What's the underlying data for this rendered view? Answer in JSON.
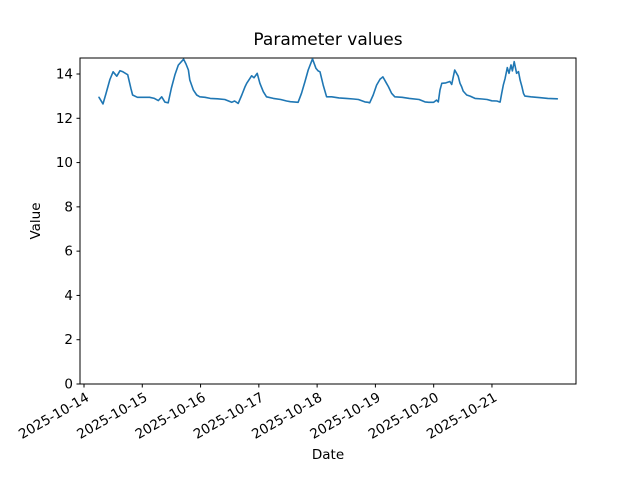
{
  "title": "Parameter values",
  "x_axis_label": "Date",
  "y_axis_label": "Value",
  "chart_data": {
    "type": "line",
    "title": "Parameter values",
    "xlabel": "Date",
    "ylabel": "Value",
    "grid": false,
    "legend": null,
    "line_color": "#1f77b4",
    "ylim": [
      0,
      14.72
    ],
    "xlim": [
      "2025-10-13 22:20",
      "2025-10-22 10:30"
    ],
    "y_ticks": [
      0,
      2,
      4,
      6,
      8,
      10,
      12,
      14
    ],
    "x_ticks": [
      "2025-10-14",
      "2025-10-15",
      "2025-10-16",
      "2025-10-17",
      "2025-10-18",
      "2025-10-19",
      "2025-10-20",
      "2025-10-21"
    ],
    "series": [
      {
        "color": "#1f77b4",
        "points": [
          [
            "2025-10-14 06:10",
            12.95
          ],
          [
            "2025-10-14 07:50",
            12.65
          ],
          [
            "2025-10-14 09:00",
            13.1
          ],
          [
            "2025-10-14 10:40",
            13.75
          ],
          [
            "2025-10-14 12:00",
            14.1
          ],
          [
            "2025-10-14 13:30",
            13.9
          ],
          [
            "2025-10-14 14:50",
            14.15
          ],
          [
            "2025-10-14 16:00",
            14.1
          ],
          [
            "2025-10-14 18:00",
            13.97
          ],
          [
            "2025-10-14 19:20",
            13.35
          ],
          [
            "2025-10-14 20:00",
            13.05
          ],
          [
            "2025-10-14 22:00",
            12.95
          ],
          [
            "2025-10-15 00:00",
            12.95
          ],
          [
            "2025-10-15 03:00",
            12.95
          ],
          [
            "2025-10-15 05:00",
            12.9
          ],
          [
            "2025-10-15 06:35",
            12.8
          ],
          [
            "2025-10-15 08:00",
            12.97
          ],
          [
            "2025-10-15 09:20",
            12.73
          ],
          [
            "2025-10-15 10:40",
            12.7
          ],
          [
            "2025-10-15 12:00",
            13.37
          ],
          [
            "2025-10-15 13:25",
            13.96
          ],
          [
            "2025-10-15 14:50",
            14.4
          ],
          [
            "2025-10-15 17:00",
            14.67
          ],
          [
            "2025-10-15 18:00",
            14.45
          ],
          [
            "2025-10-15 19:00",
            14.18
          ],
          [
            "2025-10-15 19:35",
            13.73
          ],
          [
            "2025-10-15 21:00",
            13.28
          ],
          [
            "2025-10-15 22:25",
            13.05
          ],
          [
            "2025-10-15 23:40",
            12.97
          ],
          [
            "2025-10-16 01:50",
            12.95
          ],
          [
            "2025-10-16 04:00",
            12.9
          ],
          [
            "2025-10-16 07:00",
            12.88
          ],
          [
            "2025-10-16 10:00",
            12.85
          ],
          [
            "2025-10-16 12:50",
            12.72
          ],
          [
            "2025-10-16 14:00",
            12.78
          ],
          [
            "2025-10-16 15:30",
            12.67
          ],
          [
            "2025-10-16 17:00",
            13.05
          ],
          [
            "2025-10-16 18:20",
            13.43
          ],
          [
            "2025-10-16 19:00",
            13.58
          ],
          [
            "2025-10-16 20:20",
            13.8
          ],
          [
            "2025-10-16 21:00",
            13.92
          ],
          [
            "2025-10-16 22:00",
            13.83
          ],
          [
            "2025-10-16 23:20",
            14.03
          ],
          [
            "2025-10-17 00:25",
            13.58
          ],
          [
            "2025-10-17 01:50",
            13.2
          ],
          [
            "2025-10-17 03:10",
            12.97
          ],
          [
            "2025-10-17 06:00",
            12.9
          ],
          [
            "2025-10-17 09:00",
            12.85
          ],
          [
            "2025-10-17 11:25",
            12.78
          ],
          [
            "2025-10-17 13:00",
            12.75
          ],
          [
            "2025-10-17 16:10",
            12.72
          ],
          [
            "2025-10-17 17:35",
            13.13
          ],
          [
            "2025-10-17 19:00",
            13.66
          ],
          [
            "2025-10-17 20:20",
            14.18
          ],
          [
            "2025-10-17 22:05",
            14.68
          ],
          [
            "2025-10-17 23:30",
            14.26
          ],
          [
            "2025-10-18 00:25",
            14.14
          ],
          [
            "2025-10-18 01:10",
            14.1
          ],
          [
            "2025-10-18 02:30",
            13.5
          ],
          [
            "2025-10-18 03:55",
            12.97
          ],
          [
            "2025-10-18 06:00",
            12.97
          ],
          [
            "2025-10-18 09:00",
            12.92
          ],
          [
            "2025-10-18 12:00",
            12.9
          ],
          [
            "2025-10-18 15:00",
            12.87
          ],
          [
            "2025-10-18 17:00",
            12.85
          ],
          [
            "2025-10-18 19:40",
            12.74
          ],
          [
            "2025-10-18 21:00",
            12.72
          ],
          [
            "2025-10-18 21:40",
            12.7
          ],
          [
            "2025-10-18 23:05",
            13.05
          ],
          [
            "2025-10-19 00:30",
            13.5
          ],
          [
            "2025-10-19 01:55",
            13.77
          ],
          [
            "2025-10-19 03:05",
            13.87
          ],
          [
            "2025-10-19 04:35",
            13.58
          ],
          [
            "2025-10-19 05:20",
            13.43
          ],
          [
            "2025-10-19 06:40",
            13.13
          ],
          [
            "2025-10-19 08:00",
            12.97
          ],
          [
            "2025-10-19 11:00",
            12.95
          ],
          [
            "2025-10-19 14:00",
            12.9
          ],
          [
            "2025-10-19 18:00",
            12.85
          ],
          [
            "2025-10-19 20:25",
            12.74
          ],
          [
            "2025-10-19 22:00",
            12.72
          ],
          [
            "2025-10-20 00:00",
            12.72
          ],
          [
            "2025-10-20 01:10",
            12.82
          ],
          [
            "2025-10-20 01:55",
            12.74
          ],
          [
            "2025-10-20 02:35",
            13.28
          ],
          [
            "2025-10-20 03:20",
            13.58
          ],
          [
            "2025-10-20 05:00",
            13.6
          ],
          [
            "2025-10-20 06:40",
            13.66
          ],
          [
            "2025-10-20 07:25",
            13.53
          ],
          [
            "2025-10-20 08:40",
            14.18
          ],
          [
            "2025-10-20 10:05",
            13.9
          ],
          [
            "2025-10-20 10:50",
            13.58
          ],
          [
            "2025-10-20 11:30",
            13.43
          ],
          [
            "2025-10-20 12:10",
            13.23
          ],
          [
            "2025-10-20 13:35",
            13.05
          ],
          [
            "2025-10-20 15:00",
            13.0
          ],
          [
            "2025-10-20 17:00",
            12.9
          ],
          [
            "2025-10-20 20:00",
            12.87
          ],
          [
            "2025-10-20 22:00",
            12.85
          ],
          [
            "2025-10-20 23:55",
            12.79
          ],
          [
            "2025-10-21 02:00",
            12.78
          ],
          [
            "2025-10-21 03:20",
            12.73
          ],
          [
            "2025-10-21 04:00",
            13.13
          ],
          [
            "2025-10-21 04:40",
            13.5
          ],
          [
            "2025-10-21 05:25",
            13.8
          ],
          [
            "2025-10-21 06:20",
            14.29
          ],
          [
            "2025-10-21 07:00",
            14.03
          ],
          [
            "2025-10-21 07:50",
            14.41
          ],
          [
            "2025-10-21 08:25",
            14.14
          ],
          [
            "2025-10-21 09:10",
            14.56
          ],
          [
            "2025-10-21 10:10",
            14.03
          ],
          [
            "2025-10-21 10:55",
            14.11
          ],
          [
            "2025-10-21 11:35",
            13.73
          ],
          [
            "2025-10-21 12:20",
            13.43
          ],
          [
            "2025-10-21 13:00",
            13.12
          ],
          [
            "2025-10-21 13:35",
            13.0
          ],
          [
            "2025-10-21 16:00",
            12.97
          ],
          [
            "2025-10-21 20:00",
            12.93
          ],
          [
            "2025-10-21 23:00",
            12.9
          ],
          [
            "2025-10-22 02:55",
            12.88
          ]
        ]
      }
    ]
  }
}
